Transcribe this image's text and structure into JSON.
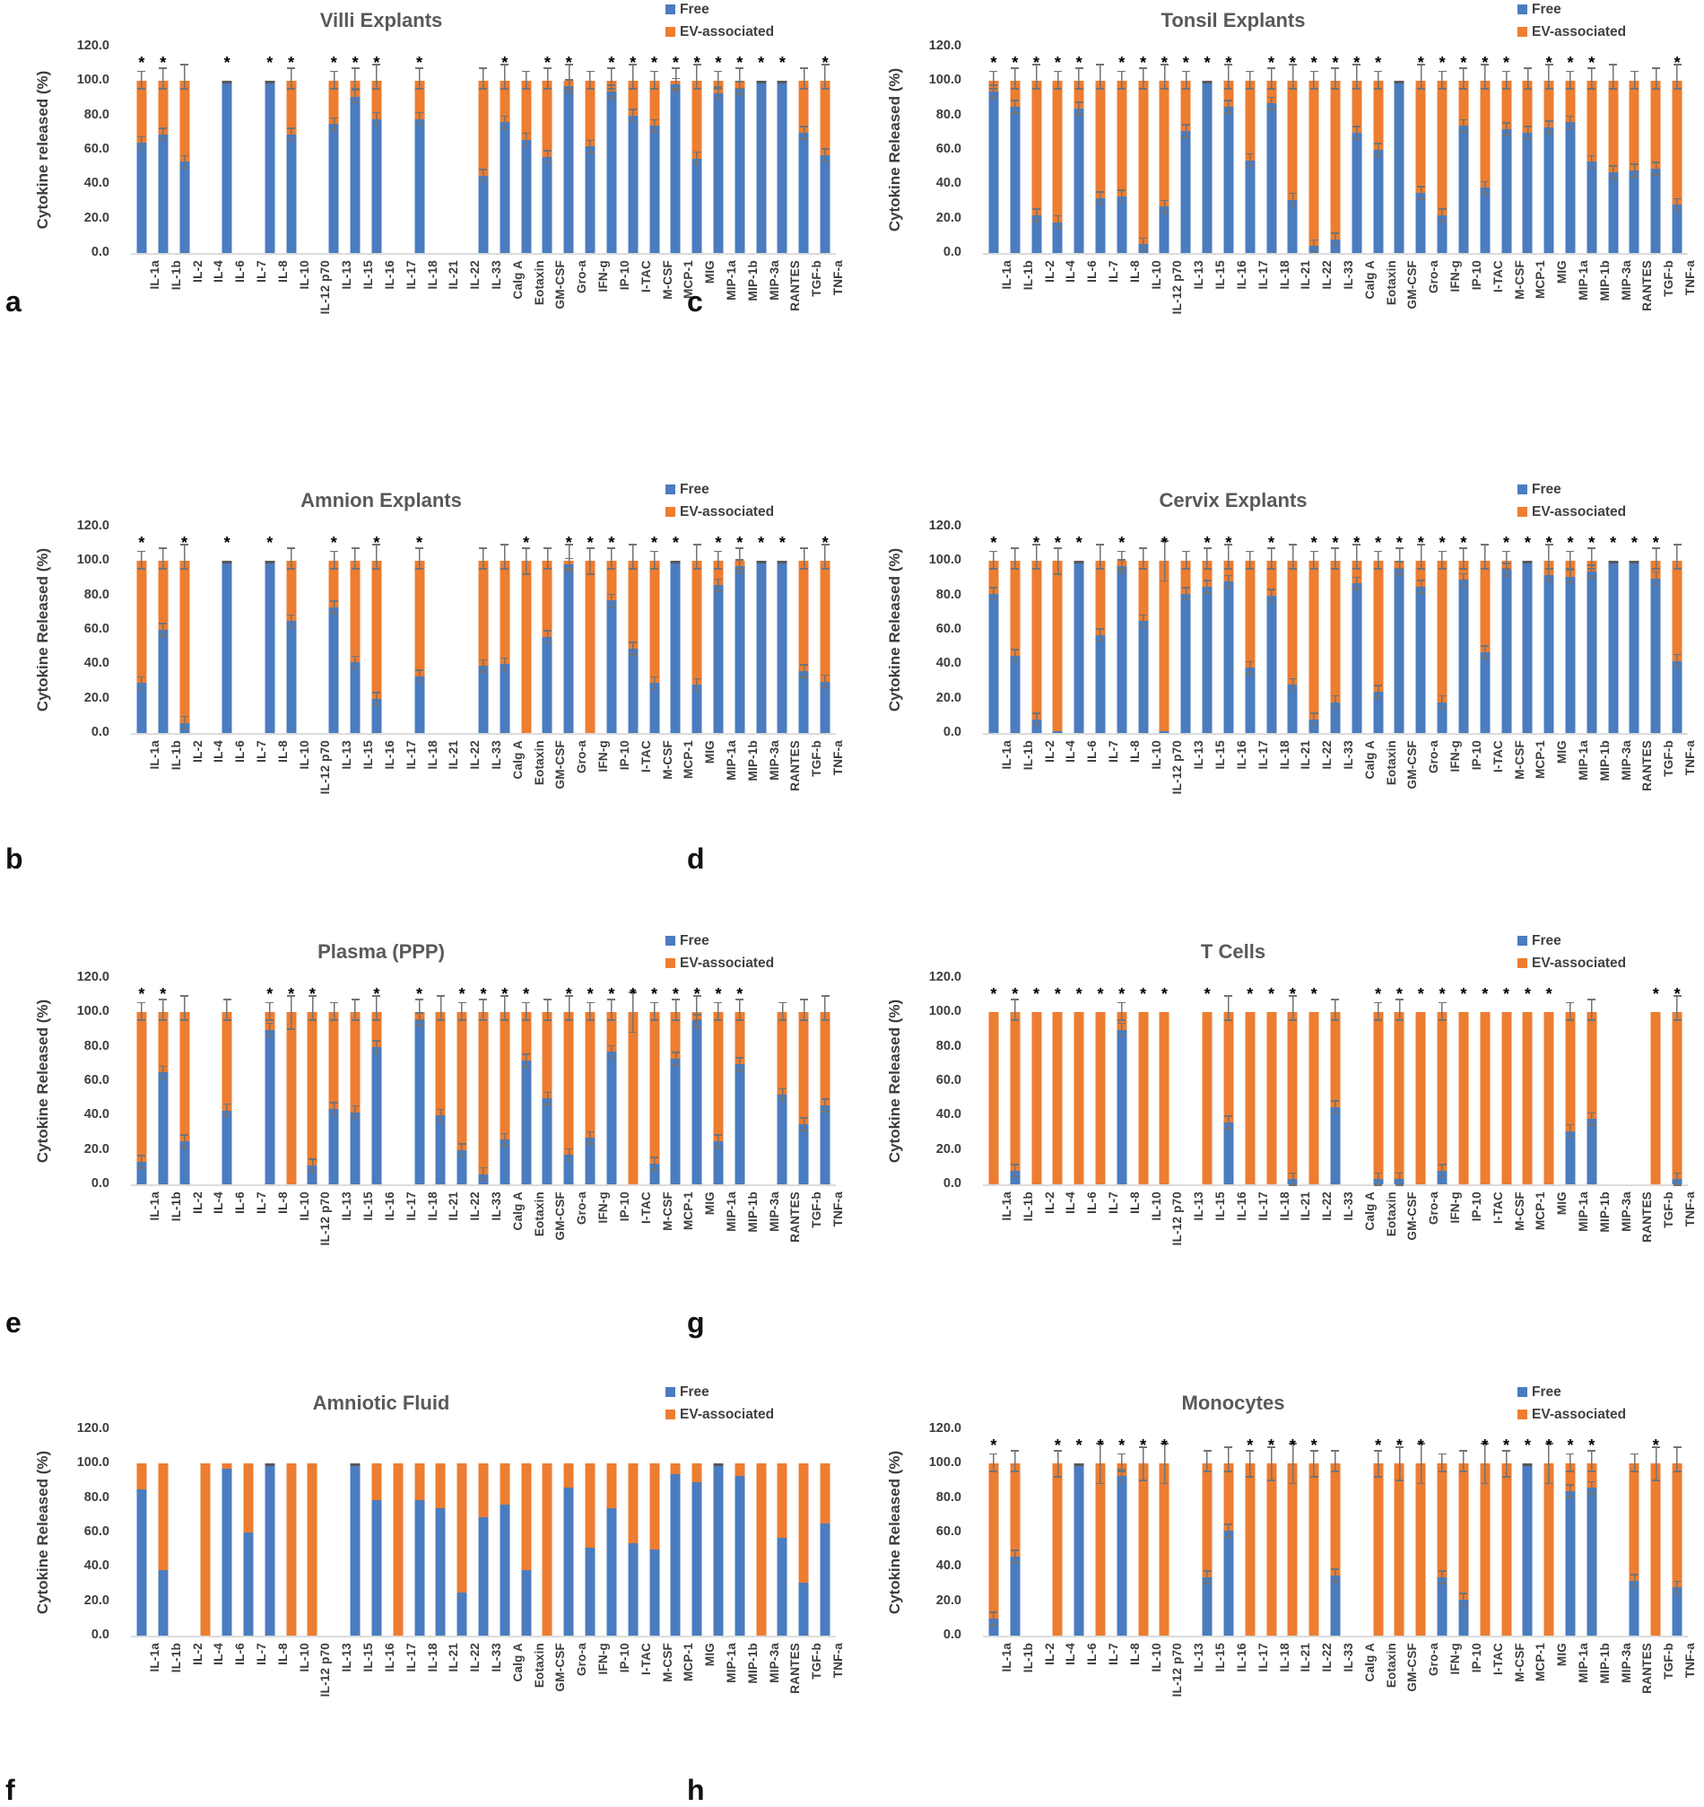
{
  "figure": {
    "kind": "multi-panel stacked bar figure",
    "panel_order": [
      "a",
      "c",
      "b",
      "d",
      "e",
      "g",
      "f",
      "h"
    ],
    "y_axis_ticks": [
      "0.0",
      "20.0",
      "40.0",
      "60.0",
      "80.0",
      "100.0",
      "120.0"
    ],
    "y_max": 120
  },
  "legend": {
    "free_label": "Free",
    "ev_label": "EV-associated"
  },
  "colors": {
    "free": "#4A7CBF",
    "ev": "#ED7D31",
    "error_bar": "#737373",
    "cap": "#595959",
    "title_text": "#595959",
    "axis_text": "#3d3d3d",
    "asterisk": "#000000",
    "baseline": "#dcdcdc"
  },
  "categories": [
    "IL-1a",
    "IL-1b",
    "IL-2",
    "IL-4",
    "IL-6",
    "IL-7",
    "IL-8",
    "IL-10",
    "IL-12 p70",
    "IL-13",
    "IL-15",
    "IL-16",
    "IL-17",
    "IL-18",
    "IL-21",
    "IL-22",
    "IL-33",
    "Calg A",
    "Eotaxin",
    "GM-CSF",
    "Gro-a",
    "IFN-g",
    "IP-10",
    "I-TAC",
    "M-CSF",
    "MCP-1",
    "MIG",
    "MIP-1a",
    "MIP-1b",
    "MIP-3a",
    "RANTES",
    "TGF-b",
    "TNF-a"
  ],
  "chart_data": [
    {
      "key": "villi",
      "letter": "a",
      "row": 1,
      "col": "left",
      "title": "Villi Explants",
      "ylabel": "Cytokine released (%)",
      "type": "bar",
      "stacked": true,
      "ylim": [
        0,
        120
      ],
      "error_bars": true,
      "orange_whiskers": true,
      "series": [
        {
          "name": "Free",
          "values": [
            64,
            69,
            53,
            null,
            100,
            null,
            99,
            69,
            null,
            75,
            91,
            78,
            null,
            78,
            null,
            null,
            45,
            76,
            66,
            56,
            97,
            62,
            94,
            80,
            74,
            98,
            55,
            93,
            96,
            100,
            100,
            70,
            57
          ]
        },
        {
          "name": "EV-associated",
          "values": [
            36,
            31,
            47,
            null,
            0,
            null,
            1,
            31,
            null,
            25,
            9,
            22,
            null,
            22,
            null,
            null,
            55,
            24,
            34,
            44,
            3,
            38,
            6,
            20,
            26,
            2,
            45,
            7,
            4,
            0,
            0,
            30,
            43
          ]
        }
      ],
      "asterisks": [
        "IL-1a",
        "IL-1b",
        "IL-6",
        "IL-8",
        "IL-10",
        "IL-13",
        "IL-15",
        "IL-16",
        "IL-18",
        "Calg A",
        "GM-CSF",
        "Gro-a",
        "IP-10",
        "I-TAC",
        "M-CSF",
        "MCP-1",
        "MIG",
        "MIP-1a",
        "MIP-1b",
        "MIP-3a",
        "RANTES",
        "TNF-a"
      ]
    },
    {
      "key": "tonsil",
      "letter": "c",
      "row": 1,
      "col": "right",
      "title": "Tonsil Explants",
      "ylabel": "Cytokine Released (%)",
      "type": "bar",
      "stacked": true,
      "ylim": [
        0,
        120
      ],
      "error_bars": true,
      "orange_whiskers": true,
      "series": [
        {
          "name": "Free",
          "values": [
            94,
            85,
            22,
            18,
            84,
            32,
            33,
            5,
            27,
            71,
            100,
            85,
            54,
            87,
            31,
            4,
            8,
            70,
            60,
            99,
            35,
            22,
            74,
            38,
            72,
            70,
            73,
            76,
            53,
            47,
            48,
            49,
            28
          ]
        },
        {
          "name": "EV-associated",
          "values": [
            6,
            15,
            78,
            82,
            16,
            68,
            67,
            95,
            73,
            29,
            0,
            15,
            46,
            13,
            69,
            96,
            92,
            30,
            40,
            1,
            65,
            78,
            26,
            62,
            28,
            30,
            27,
            24,
            47,
            53,
            52,
            51,
            72
          ]
        }
      ],
      "asterisks": [
        "IL-1a",
        "IL-1b",
        "IL-2",
        "IL-4",
        "IL-6",
        "IL-8",
        "IL-10",
        "IL-12 p70",
        "IL-13",
        "IL-15",
        "IL-16",
        "IL-18",
        "IL-21",
        "IL-22",
        "IL-33",
        "Calg A",
        "Eotaxin",
        "Gro-a",
        "IFN-g",
        "IP-10",
        "I-TAC",
        "M-CSF",
        "MIG",
        "MIP-1a",
        "MIP-1b",
        "TNF-a"
      ]
    },
    {
      "key": "amnion",
      "letter": "b",
      "row": 2,
      "col": "left",
      "title": "Amnion Explants",
      "ylabel": "Cytokine Released (%)",
      "type": "bar",
      "stacked": true,
      "ylim": [
        0,
        120
      ],
      "error_bars": true,
      "orange_whiskers": true,
      "series": [
        {
          "name": "Free",
          "values": [
            29,
            60,
            6,
            null,
            100,
            null,
            100,
            65,
            null,
            73,
            41,
            20,
            null,
            33,
            null,
            null,
            39,
            40,
            0,
            56,
            98,
            0,
            77,
            49,
            29,
            100,
            28,
            86,
            97,
            100,
            100,
            36,
            30
          ]
        },
        {
          "name": "EV-associated",
          "values": [
            71,
            40,
            94,
            null,
            0,
            null,
            0,
            35,
            null,
            27,
            59,
            80,
            null,
            67,
            null,
            null,
            61,
            60,
            100,
            44,
            2,
            100,
            23,
            51,
            71,
            0,
            72,
            14,
            3,
            0,
            0,
            64,
            70
          ]
        }
      ],
      "asterisks": [
        "IL-1a",
        "IL-2",
        "IL-6",
        "IL-8",
        "IL-13",
        "IL-16",
        "IL-18",
        "Eotaxin",
        "Gro-a",
        "IFN-g",
        "IP-10",
        "M-CSF",
        "MCP-1",
        "MIP-1a",
        "MIP-1b",
        "MIP-3a",
        "RANTES",
        "TNF-a"
      ]
    },
    {
      "key": "cervix",
      "letter": "d",
      "row": 2,
      "col": "right",
      "title": "Cervix Explants",
      "ylabel": "Cytokine Released (%)",
      "type": "bar",
      "stacked": true,
      "ylim": [
        0,
        120
      ],
      "error_bars": true,
      "orange_whiskers": true,
      "series": [
        {
          "name": "Free",
          "values": [
            81,
            45,
            8,
            1,
            100,
            57,
            97,
            65,
            1,
            81,
            85,
            88,
            38,
            80,
            28,
            8,
            18,
            87,
            24,
            96,
            85,
            18,
            89,
            47,
            95,
            99,
            92,
            91,
            94,
            100,
            99,
            90,
            42
          ]
        },
        {
          "name": "EV-associated",
          "values": [
            19,
            55,
            92,
            99,
            0,
            43,
            3,
            35,
            99,
            19,
            15,
            12,
            62,
            20,
            72,
            92,
            82,
            13,
            76,
            4,
            15,
            82,
            11,
            53,
            5,
            1,
            8,
            9,
            6,
            0,
            1,
            10,
            58
          ]
        }
      ],
      "asterisks": [
        "IL-1a",
        "IL-2",
        "IL-4",
        "IL-6",
        "IL-8",
        "IL-12 p70",
        "IL-15",
        "IL-16",
        "IL-18",
        "IL-22",
        "IL-33",
        "Calg A",
        "Eotaxin",
        "GM-CSF",
        "Gro-a",
        "IFN-g",
        "IP-10",
        "M-CSF",
        "MCP-1",
        "MIG",
        "MIP-1a",
        "MIP-1b",
        "MIP-3a",
        "RANTES",
        "TGF-b"
      ]
    },
    {
      "key": "plasma",
      "letter": "e",
      "row": 3,
      "col": "left",
      "title": "Plasma (PPP)",
      "ylabel": "Cytokine Released (%)",
      "type": "bar",
      "stacked": true,
      "ylim": [
        0,
        120
      ],
      "error_bars": true,
      "orange_whiskers": true,
      "series": [
        {
          "name": "Free",
          "values": [
            13,
            65,
            25,
            null,
            43,
            null,
            90,
            0,
            11,
            44,
            42,
            80,
            null,
            96,
            40,
            20,
            6,
            26,
            72,
            50,
            17,
            27,
            77,
            0,
            12,
            73,
            95,
            25,
            70,
            null,
            52,
            35,
            46
          ]
        },
        {
          "name": "EV-associated",
          "values": [
            87,
            35,
            75,
            null,
            57,
            null,
            10,
            100,
            89,
            56,
            58,
            20,
            null,
            4,
            60,
            80,
            94,
            74,
            28,
            50,
            83,
            73,
            23,
            100,
            88,
            27,
            5,
            75,
            30,
            null,
            48,
            65,
            54
          ]
        }
      ],
      "asterisks": [
        "IL-1a",
        "IL-1b",
        "IL-8",
        "IL-10",
        "IL-12 p70",
        "IL-16",
        "IL-18",
        "IL-22",
        "IL-33",
        "Calg A",
        "Eotaxin",
        "Gro-a",
        "IFN-g",
        "IP-10",
        "I-TAC",
        "M-CSF",
        "MCP-1",
        "MIG",
        "MIP-1a",
        "MIP-1b"
      ]
    },
    {
      "key": "tcells",
      "letter": "g",
      "row": 3,
      "col": "right",
      "title": "T Cells",
      "ylabel": "Cytokine Released (%)",
      "type": "bar",
      "stacked": true,
      "ylim": [
        0,
        120
      ],
      "error_bars": true,
      "orange_whiskers": false,
      "series": [
        {
          "name": "Free",
          "values": [
            0,
            8,
            0,
            0,
            0,
            0,
            90,
            0,
            0,
            null,
            0,
            36,
            0,
            0,
            3,
            0,
            45,
            null,
            3,
            3,
            0,
            8,
            0,
            0,
            0,
            0,
            0,
            31,
            38,
            null,
            null,
            0,
            3
          ]
        },
        {
          "name": "EV-associated",
          "values": [
            100,
            92,
            100,
            100,
            100,
            100,
            10,
            100,
            100,
            null,
            100,
            64,
            100,
            100,
            97,
            100,
            55,
            null,
            97,
            97,
            100,
            92,
            100,
            100,
            100,
            100,
            100,
            69,
            62,
            null,
            null,
            100,
            97
          ]
        }
      ],
      "asterisks": [
        "IL-1a",
        "IL-1b",
        "IL-2",
        "IL-4",
        "IL-6",
        "IL-7",
        "IL-8",
        "IL-10",
        "IL-12 p70",
        "IL-15",
        "IL-17",
        "IL-18",
        "IL-21",
        "IL-22",
        "Eotaxin",
        "GM-CSF",
        "Gro-a",
        "IFN-g",
        "IP-10",
        "I-TAC",
        "M-CSF",
        "MCP-1",
        "MIG",
        "TGF-b",
        "TNF-a"
      ]
    },
    {
      "key": "amniotic_fluid",
      "letter": "f",
      "row": 4,
      "col": "left",
      "title": "Amniotic Fluid",
      "ylabel": "Cytokine Released (%)",
      "type": "bar",
      "stacked": true,
      "ylim": [
        0,
        120
      ],
      "error_bars": false,
      "orange_whiskers": false,
      "series": [
        {
          "name": "Free",
          "values": [
            85,
            38,
            null,
            0,
            97,
            60,
            99,
            0,
            0,
            null,
            99,
            79,
            0,
            79,
            74,
            25,
            69,
            76,
            38,
            0,
            86,
            51,
            74,
            54,
            50,
            94,
            89,
            100,
            93,
            0,
            57,
            31,
            65
          ]
        },
        {
          "name": "EV-associated",
          "values": [
            15,
            62,
            null,
            100,
            3,
            40,
            1,
            100,
            100,
            null,
            1,
            21,
            100,
            21,
            26,
            75,
            31,
            24,
            62,
            100,
            14,
            49,
            26,
            46,
            50,
            6,
            11,
            0,
            7,
            100,
            43,
            69,
            35
          ]
        }
      ],
      "asterisks": []
    },
    {
      "key": "monocytes",
      "letter": "h",
      "row": 4,
      "col": "right",
      "title": "Monocytes",
      "ylabel": "Cytokine Released (%)",
      "type": "bar",
      "stacked": true,
      "ylim": [
        0,
        120
      ],
      "error_bars": true,
      "orange_whiskers": true,
      "series": [
        {
          "name": "Free",
          "values": [
            10,
            46,
            null,
            0,
            99,
            0,
            93,
            0,
            0,
            null,
            34,
            61,
            0,
            0,
            0,
            0,
            35,
            null,
            0,
            0,
            0,
            34,
            21,
            0,
            0,
            100,
            0,
            84,
            86,
            null,
            32,
            0,
            28
          ]
        },
        {
          "name": "EV-associated",
          "values": [
            90,
            54,
            null,
            100,
            1,
            100,
            7,
            100,
            100,
            null,
            66,
            39,
            100,
            100,
            100,
            100,
            65,
            null,
            100,
            100,
            100,
            66,
            79,
            100,
            100,
            0,
            100,
            16,
            14,
            null,
            68,
            100,
            72
          ]
        }
      ],
      "asterisks": [
        "IL-1a",
        "IL-4",
        "IL-6",
        "IL-7",
        "IL-8",
        "IL-10",
        "IL-12 p70",
        "IL-17",
        "IL-18",
        "IL-21",
        "IL-22",
        "Eotaxin",
        "GM-CSF",
        "Gro-a",
        "I-TAC",
        "M-CSF",
        "MCP-1",
        "MIG",
        "MIP-1a",
        "MIP-1b",
        "TGF-b"
      ]
    }
  ]
}
